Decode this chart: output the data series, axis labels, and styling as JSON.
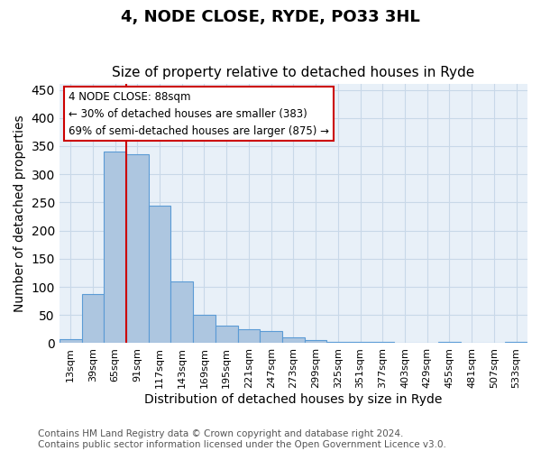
{
  "title": "4, NODE CLOSE, RYDE, PO33 3HL",
  "subtitle": "Size of property relative to detached houses in Ryde",
  "xlabel": "Distribution of detached houses by size in Ryde",
  "ylabel": "Number of detached properties",
  "footnote1": "Contains HM Land Registry data © Crown copyright and database right 2024.",
  "footnote2": "Contains public sector information licensed under the Open Government Licence v3.0.",
  "annotation_line1": "4 NODE CLOSE: 88sqm",
  "annotation_line2": "← 30% of detached houses are smaller (383)",
  "annotation_line3": "69% of semi-detached houses are larger (875) →",
  "categories": [
    "13sqm",
    "39sqm",
    "65sqm",
    "91sqm",
    "117sqm",
    "143sqm",
    "169sqm",
    "195sqm",
    "221sqm",
    "247sqm",
    "273sqm",
    "299sqm",
    "325sqm",
    "351sqm",
    "377sqm",
    "403sqm",
    "429sqm",
    "455sqm",
    "481sqm",
    "507sqm",
    "533sqm"
  ],
  "bar_values_full": [
    7,
    88,
    340,
    335,
    245,
    110,
    50,
    31,
    25,
    22,
    11,
    5,
    3,
    3,
    3,
    1,
    0,
    3,
    0,
    0,
    3
  ],
  "bar_color": "#adc6e0",
  "bar_edge_color": "#5b9bd5",
  "vline_color": "#cc0000",
  "annotation_box_color": "#cc0000",
  "ylim": [
    0,
    460
  ],
  "grid_color": "#c8d8e8",
  "bg_color": "#e8f0f8",
  "title_fontsize": 13,
  "subtitle_fontsize": 11,
  "xlabel_fontsize": 10,
  "ylabel_fontsize": 10,
  "tick_fontsize": 8,
  "annotation_fontsize": 8.5,
  "footnote_fontsize": 7.5
}
